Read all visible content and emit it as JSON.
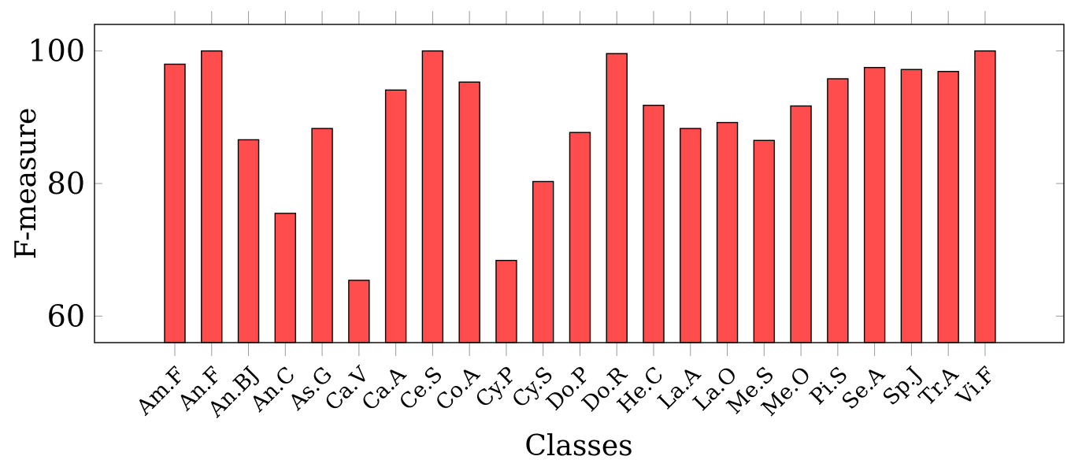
{
  "chart_data": {
    "type": "bar",
    "xlabel": "Classes",
    "ylabel": "F-measure",
    "ylim": [
      56,
      104
    ],
    "yticks": [
      60,
      80,
      100
    ],
    "grid": false,
    "categories": [
      "Am.F",
      "An.F",
      "An.BJ",
      "An.C",
      "As.G",
      "Ca.V",
      "Ca.A",
      "Ce.S",
      "Co.A",
      "Cy.P",
      "Cy.S",
      "Do.P",
      "Do.R",
      "He.C",
      "La.A",
      "La.O",
      "Me.S",
      "Me.O",
      "Pi.S",
      "Se.A",
      "Sp.J",
      "Tr.A",
      "Vi.F"
    ],
    "values": [
      98,
      100,
      86.6,
      75.5,
      88.3,
      65.4,
      94.1,
      100,
      95.3,
      68.4,
      80.3,
      87.7,
      99.6,
      91.8,
      88.3,
      89.2,
      86.5,
      91.7,
      95.8,
      97.5,
      97.2,
      96.9,
      100
    ],
    "bar_color": "#ff4c4c"
  }
}
